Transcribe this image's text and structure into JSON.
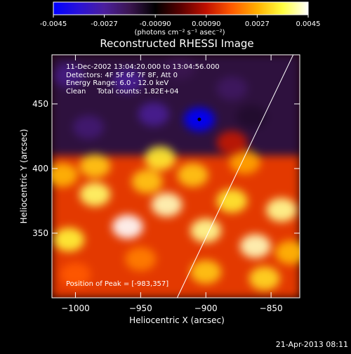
{
  "colorbar": {
    "stops": [
      "#0000ff",
      "#2a12d8",
      "#4b1f9c",
      "#3b1650",
      "#000000",
      "#5a0000",
      "#c01000",
      "#ff5a00",
      "#ffb000",
      "#ffff40",
      "#ffffff"
    ],
    "ticks": [
      "-0.0045",
      "-0.0027",
      "-0.00090",
      "0.00090",
      "0.0027",
      "0.0045"
    ],
    "unit": "(photons cm⁻² s⁻¹ asec⁻²)"
  },
  "title": "Reconstructed RHESSI Image",
  "info_lines": [
    "11-Dec-2002 13:04:20.000 to 13:04:56.000",
    "Detectors: 4F 5F 6F 7F 8F, Att 0",
    "Energy Range: 6.0 - 12.0 keV",
    "Clean     Total counts: 1.82E+04"
  ],
  "peak_label": "Position of Peak = [-983,357]",
  "footer_date": "21-Apr-2013 08:11",
  "chart_data": {
    "type": "heatmap",
    "title": "Reconstructed RHESSI Image",
    "xlabel": "Heliocentric X (arcsec)",
    "ylabel": "Heliocentric Y (arcsec)",
    "xlim": [
      -1018,
      -828
    ],
    "ylim": [
      300,
      488
    ],
    "xticks": [
      -1000,
      -950,
      -900,
      -850
    ],
    "yticks": [
      350,
      400,
      450
    ],
    "xtick_labels": [
      "−1000",
      "−950",
      "−900",
      "−850"
    ],
    "ytick_labels": [
      "350",
      "400",
      "450"
    ],
    "colorbar_range": [
      -0.0045,
      0.0045
    ],
    "limb_line": {
      "points": [
        [
          -922,
          300
        ],
        [
          -833,
          488
        ]
      ]
    },
    "peak_position": [
      -983,
      357
    ],
    "blobs": [
      {
        "x": -960,
        "y": 355,
        "v": 0.0045
      },
      {
        "x": -1005,
        "y": 345,
        "v": 0.0035
      },
      {
        "x": -930,
        "y": 372,
        "v": 0.0042
      },
      {
        "x": -985,
        "y": 380,
        "v": 0.0038
      },
      {
        "x": -900,
        "y": 352,
        "v": 0.004
      },
      {
        "x": -880,
        "y": 375,
        "v": 0.0034
      },
      {
        "x": -862,
        "y": 340,
        "v": 0.0042
      },
      {
        "x": -842,
        "y": 368,
        "v": 0.004
      },
      {
        "x": -985,
        "y": 402,
        "v": 0.003
      },
      {
        "x": -935,
        "y": 408,
        "v": 0.0034
      },
      {
        "x": -910,
        "y": 395,
        "v": 0.003
      },
      {
        "x": -1010,
        "y": 395,
        "v": 0.0028
      },
      {
        "x": -870,
        "y": 405,
        "v": 0.0026
      },
      {
        "x": -950,
        "y": 330,
        "v": 0.0022
      },
      {
        "x": -1000,
        "y": 318,
        "v": 0.0018
      },
      {
        "x": -900,
        "y": 320,
        "v": 0.003
      },
      {
        "x": -855,
        "y": 315,
        "v": 0.0032
      },
      {
        "x": -835,
        "y": 335,
        "v": 0.0028
      },
      {
        "x": -945,
        "y": 390,
        "v": 0.003
      },
      {
        "x": -880,
        "y": 420,
        "v": 0.001
      },
      {
        "x": -905,
        "y": 438,
        "v": -0.0045
      },
      {
        "x": -940,
        "y": 442,
        "v": -0.0026
      },
      {
        "x": -990,
        "y": 432,
        "v": -0.0022
      },
      {
        "x": -960,
        "y": 468,
        "v": -0.0026
      },
      {
        "x": -1005,
        "y": 472,
        "v": -0.0024
      },
      {
        "x": -880,
        "y": 462,
        "v": -0.002
      },
      {
        "x": -865,
        "y": 440,
        "v": -0.0014
      },
      {
        "x": -920,
        "y": 478,
        "v": -0.0018
      }
    ]
  }
}
